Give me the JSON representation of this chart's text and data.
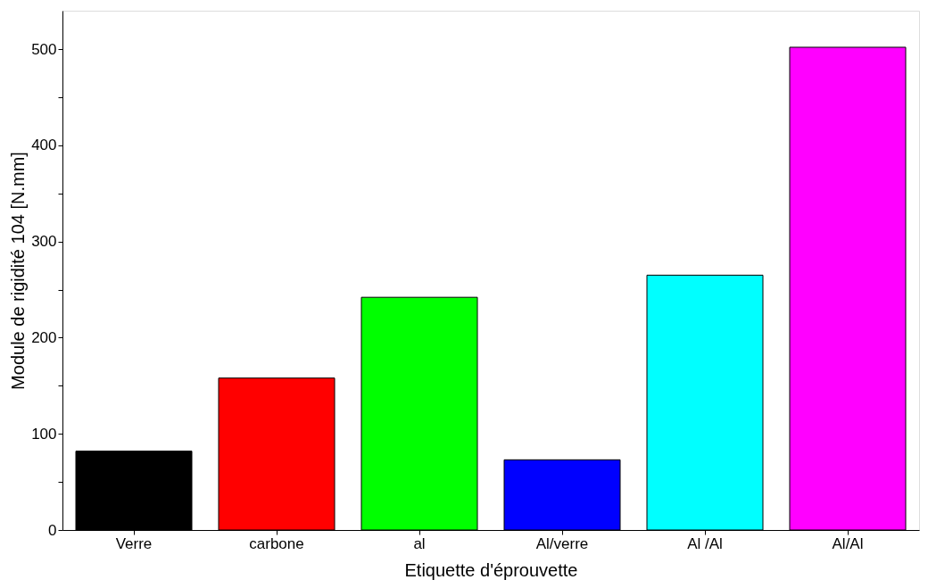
{
  "chart_data": {
    "type": "bar",
    "xlabel": "Etiquette d'éprouvette",
    "ylabel": "Module de rigidité 104 [N.mm]",
    "categories": [
      "Verre",
      "carbone",
      "al",
      "Al/verre",
      "Al /Al",
      "Al/Al"
    ],
    "values": [
      82,
      158,
      242,
      73,
      265,
      502
    ],
    "colors": [
      "#000000",
      "#ff0000",
      "#00ff00",
      "#0000ff",
      "#00ffff",
      "#ff00ff"
    ],
    "ylim": [
      0,
      540
    ],
    "yticks": [
      0,
      {
        "value": 50,
        "label": null
      },
      100,
      {
        "value": 150,
        "label": null
      },
      200,
      {
        "value": 250,
        "label": null
      },
      300,
      {
        "value": 350,
        "label": null
      },
      400,
      {
        "value": 450,
        "label": null
      },
      500
    ],
    "grid": false
  }
}
